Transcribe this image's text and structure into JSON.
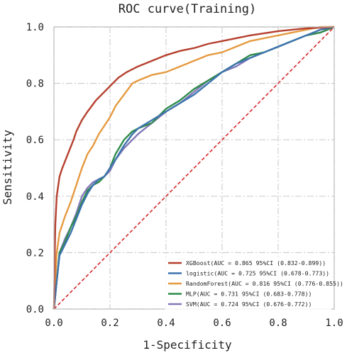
{
  "chart_data": {
    "type": "line",
    "title": "ROC curve(Training)",
    "xlabel": "1-Specificity",
    "ylabel": "Sensitivity",
    "xlim": [
      0,
      1
    ],
    "ylim": [
      0,
      1
    ],
    "xticks": [
      "0.0",
      "0.2",
      "0.4",
      "0.6",
      "0.8",
      "1.0"
    ],
    "yticks": [
      "0.0",
      "0.2",
      "0.4",
      "0.6",
      "0.8",
      "1.0"
    ],
    "grid": true,
    "legend_position": "bottom-right",
    "reference_line": {
      "color": "#d62728",
      "style": "dashed",
      "x": [
        0,
        1
      ],
      "y": [
        0,
        1
      ]
    },
    "series": [
      {
        "name": "XGBoost(AUC = 0.865 95%CI (0.832-0.899))",
        "color": "#b5402e",
        "x": [
          0,
          0.003,
          0.005,
          0.01,
          0.02,
          0.03,
          0.05,
          0.07,
          0.08,
          0.1,
          0.12,
          0.15,
          0.18,
          0.2,
          0.23,
          0.26,
          0.3,
          0.35,
          0.4,
          0.45,
          0.5,
          0.55,
          0.6,
          0.7,
          0.8,
          0.9,
          1.0
        ],
        "y": [
          0,
          0.2,
          0.3,
          0.4,
          0.47,
          0.5,
          0.55,
          0.6,
          0.63,
          0.67,
          0.7,
          0.74,
          0.77,
          0.79,
          0.82,
          0.84,
          0.86,
          0.88,
          0.9,
          0.915,
          0.925,
          0.94,
          0.95,
          0.97,
          0.985,
          0.995,
          1.0
        ]
      },
      {
        "name": "logistic(AUC = 0.725 95%CI (0.678-0.773))",
        "color": "#3c74ad",
        "x": [
          0,
          0.01,
          0.02,
          0.04,
          0.06,
          0.08,
          0.1,
          0.12,
          0.14,
          0.16,
          0.18,
          0.2,
          0.22,
          0.25,
          0.28,
          0.3,
          0.35,
          0.4,
          0.45,
          0.5,
          0.55,
          0.6,
          0.65,
          0.7,
          0.75,
          0.8,
          0.85,
          0.9,
          0.95,
          1.0
        ],
        "y": [
          0,
          0.1,
          0.19,
          0.23,
          0.27,
          0.32,
          0.37,
          0.41,
          0.44,
          0.46,
          0.47,
          0.5,
          0.53,
          0.58,
          0.62,
          0.64,
          0.67,
          0.7,
          0.73,
          0.76,
          0.8,
          0.84,
          0.87,
          0.89,
          0.91,
          0.93,
          0.95,
          0.97,
          0.99,
          1.0
        ]
      },
      {
        "name": "RandomForest(AUC = 0.816 95%CI (0.776-0.855))",
        "color": "#e59a40",
        "x": [
          0,
          0.005,
          0.01,
          0.02,
          0.04,
          0.06,
          0.08,
          0.1,
          0.12,
          0.14,
          0.16,
          0.18,
          0.2,
          0.22,
          0.25,
          0.28,
          0.3,
          0.35,
          0.4,
          0.45,
          0.5,
          0.55,
          0.6,
          0.65,
          0.7,
          0.8,
          0.9,
          0.95,
          1.0
        ],
        "y": [
          0,
          0.1,
          0.2,
          0.27,
          0.33,
          0.38,
          0.44,
          0.5,
          0.55,
          0.58,
          0.62,
          0.65,
          0.68,
          0.72,
          0.76,
          0.8,
          0.81,
          0.83,
          0.84,
          0.86,
          0.88,
          0.9,
          0.91,
          0.93,
          0.95,
          0.97,
          0.99,
          1.0,
          1.0
        ]
      },
      {
        "name": "MLP(AUC = 0.731 95%CI (0.683-0.778))",
        "color": "#2f8b4a",
        "x": [
          0,
          0.01,
          0.02,
          0.04,
          0.06,
          0.08,
          0.1,
          0.12,
          0.14,
          0.16,
          0.18,
          0.2,
          0.22,
          0.25,
          0.28,
          0.3,
          0.35,
          0.4,
          0.45,
          0.5,
          0.55,
          0.6,
          0.65,
          0.7,
          0.75,
          0.8,
          0.85,
          0.9,
          0.95,
          1.0
        ],
        "y": [
          0,
          0.1,
          0.2,
          0.24,
          0.29,
          0.33,
          0.38,
          0.42,
          0.44,
          0.45,
          0.47,
          0.5,
          0.55,
          0.6,
          0.63,
          0.64,
          0.66,
          0.71,
          0.74,
          0.78,
          0.81,
          0.84,
          0.87,
          0.9,
          0.91,
          0.93,
          0.95,
          0.97,
          0.98,
          1.0
        ]
      },
      {
        "name": "SVM(AUC = 0.724 95%CI (0.676-0.772))",
        "color": "#8379b8",
        "x": [
          0,
          0.01,
          0.02,
          0.04,
          0.06,
          0.08,
          0.1,
          0.12,
          0.14,
          0.16,
          0.18,
          0.2,
          0.22,
          0.25,
          0.28,
          0.3,
          0.35,
          0.4,
          0.45,
          0.5,
          0.55,
          0.6,
          0.65,
          0.7,
          0.75,
          0.8,
          0.85,
          0.9,
          0.95,
          1.0
        ],
        "y": [
          0,
          0.1,
          0.2,
          0.25,
          0.29,
          0.34,
          0.4,
          0.43,
          0.45,
          0.46,
          0.47,
          0.49,
          0.53,
          0.57,
          0.6,
          0.62,
          0.66,
          0.7,
          0.73,
          0.77,
          0.81,
          0.84,
          0.86,
          0.89,
          0.91,
          0.93,
          0.95,
          0.97,
          0.98,
          1.0
        ]
      }
    ]
  }
}
